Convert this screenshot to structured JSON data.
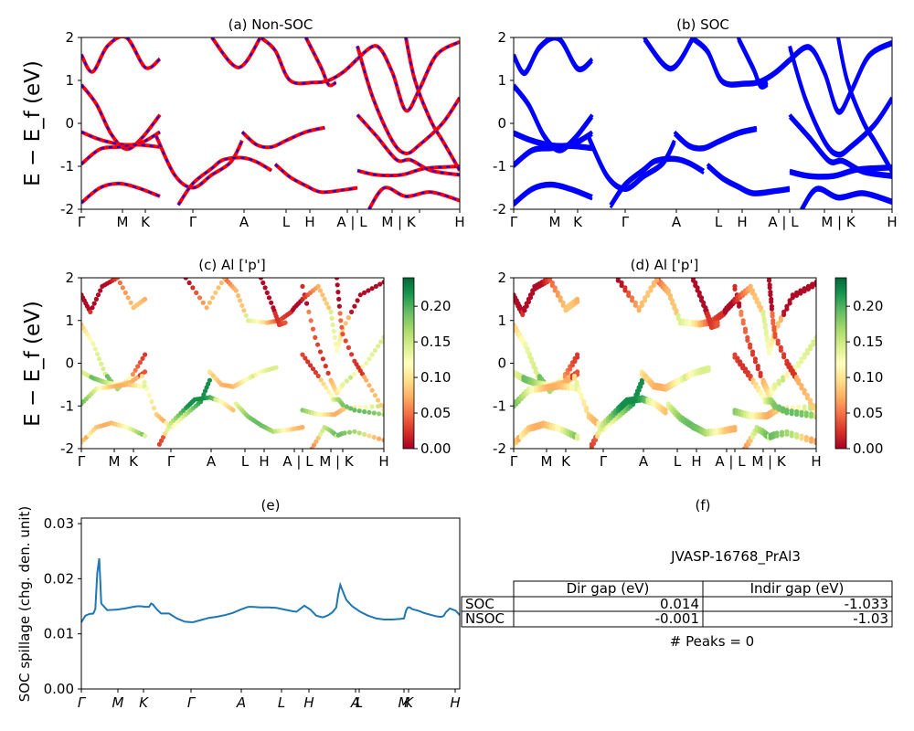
{
  "chart_data": [
    {
      "id": "a",
      "type": "line",
      "title": "(a) Non-SOC",
      "ylabel": "E − E_f (eV)",
      "ylim": [
        -2,
        2
      ],
      "yticks": [
        -2,
        -1,
        0,
        1,
        2
      ],
      "xticks": [
        "Γ",
        "M",
        "K",
        "Γ",
        "A",
        "L",
        "H",
        "A | L",
        "M | K",
        "H"
      ],
      "series": [
        {
          "color": "#ff0000",
          "style": "solid",
          "bands": [
            {
              "x": [
                0,
                4,
                8,
                12,
                16,
                21
              ],
              "y": [
                0.9,
                0.45,
                -0.25,
                -0.6,
                -0.35,
                0.2
              ]
            },
            {
              "x": [
                0,
                4,
                8,
                12,
                16,
                21
              ],
              "y": [
                -0.2,
                -0.35,
                -0.45,
                -0.5,
                -0.45,
                -0.2
              ]
            },
            {
              "x": [
                0,
                5,
                10,
                15,
                21
              ],
              "y": [
                -0.95,
                -0.6,
                -0.55,
                -0.5,
                -0.55
              ]
            },
            {
              "x": [
                0,
                5,
                10,
                15,
                21
              ],
              "y": [
                -1.85,
                -1.5,
                -1.4,
                -1.5,
                -1.7
              ]
            },
            {
              "x": [
                0,
                3,
                7,
                12,
                17,
                21
              ],
              "y": [
                1.6,
                1.2,
                1.8,
                2.0,
                1.3,
                1.5
              ]
            },
            {
              "x": [
                20,
                25,
                30,
                35,
                40,
                43
              ],
              "y": [
                -0.3,
                -1.2,
                -1.5,
                -1.2,
                -0.9,
                -0.4
              ]
            },
            {
              "x": [
                26,
                30,
                35,
                38,
                43,
                47,
                51
              ],
              "y": [
                -1.9,
                -1.4,
                -1.05,
                -0.85,
                -0.8,
                -0.9,
                -1.1
              ]
            },
            {
              "x": [
                43,
                47,
                51,
                55,
                60,
                65
              ],
              "y": [
                -0.2,
                -0.5,
                -0.55,
                -0.4,
                -0.2,
                -0.1
              ]
            },
            {
              "x": [
                52,
                56,
                60,
                64,
                70,
                73
              ],
              "y": [
                -0.95,
                -1.25,
                -1.45,
                -1.6,
                -1.55,
                -1.5
              ]
            },
            {
              "x": [
                48,
                52,
                56,
                62,
                66,
                70,
                73
              ],
              "y": [
                2.0,
                1.7,
                1.0,
                0.95,
                1.0,
                1.2,
                1.5
              ]
            },
            {
              "x": [
                60,
                64,
                66,
                68
              ],
              "y": [
                2.0,
                1.3,
                0.9,
                0.95
              ]
            },
            {
              "x": [
                35,
                42,
                48
              ],
              "y": [
                2.0,
                1.3,
                2.0
              ]
            },
            {
              "x": [
                73,
                78,
                84,
                89,
                95
              ],
              "y": [
                -1.1,
                -1.2,
                -1.2,
                -1.05,
                -1.0
              ]
            },
            {
              "x": [
                73,
                77,
                82,
                85,
                88,
                92,
                95
              ],
              "y": [
                1.8,
                0.6,
                -0.4,
                -0.7,
                -0.5,
                0.0,
                0.6
              ]
            },
            {
              "x": [
                73,
                78,
                83,
                86,
                90,
                95
              ],
              "y": [
                0.2,
                -0.3,
                -0.85,
                -0.85,
                -1.1,
                -1.2
              ]
            },
            {
              "x": [
                76,
                80,
                85,
                90,
                95
              ],
              "y": [
                -2.0,
                -1.5,
                -1.7,
                -1.6,
                -1.8
              ]
            },
            {
              "x": [
                73,
                78,
                82,
                85,
                88,
                91,
                95
              ],
              "y": [
                1.5,
                1.8,
                1.2,
                0.3,
                0.8,
                1.6,
                1.9
              ]
            },
            {
              "x": [
                85,
                87,
                90,
                92,
                95
              ],
              "y": [
                2.0,
                1.0,
                0.05,
                -0.4,
                -1.1
              ]
            }
          ]
        },
        {
          "color": "#0000ff",
          "style": "dashed",
          "bands": "same"
        }
      ]
    },
    {
      "id": "b",
      "type": "line",
      "title": "(b) SOC",
      "ylim": [
        -2,
        2
      ],
      "yticks": [
        -2,
        -1,
        0,
        1,
        2
      ],
      "xticks": [
        "Γ",
        "M",
        "K",
        "Γ",
        "A",
        "L",
        "H",
        "A | L",
        "M | K",
        "H"
      ],
      "series": [
        {
          "color": "#0000ff",
          "style": "solid",
          "bands": "same-as-a"
        }
      ]
    },
    {
      "id": "c",
      "type": "scatter",
      "title": "(c)  Al ['p']",
      "ylabel": "E − E_f (eV)",
      "ylim": [
        -2,
        2
      ],
      "yticks": [
        -2,
        -1,
        0,
        1,
        2
      ],
      "xticks": [
        "Γ",
        "M",
        "K",
        "Γ",
        "A",
        "L",
        "H",
        "A | L",
        "M | K",
        "H"
      ],
      "colorbar": {
        "range": [
          0.0,
          0.24
        ],
        "ticks": [
          "0.00",
          "0.05",
          "0.10",
          "0.15",
          "0.20"
        ],
        "colormap": "RdYlGn"
      },
      "points": "band-projection"
    },
    {
      "id": "d",
      "type": "scatter",
      "title": "(d) Al ['p']",
      "ylim": [
        -2,
        2
      ],
      "yticks": [
        -2,
        -1,
        0,
        1,
        2
      ],
      "xticks": [
        "Γ",
        "M",
        "K",
        "Γ",
        "A",
        "L",
        "H",
        "A | L",
        "M | K",
        "H"
      ],
      "colorbar": {
        "range": [
          0.0,
          0.24
        ],
        "ticks": [
          "0.00",
          "0.05",
          "0.10",
          "0.15",
          "0.20"
        ],
        "colormap": "RdYlGn"
      },
      "points": "band-projection"
    },
    {
      "id": "e",
      "type": "line",
      "title": "(e)",
      "ylabel": "SOC spillage (chg. den. unit)",
      "ylim": [
        0.0,
        0.031
      ],
      "yticks": [
        "0.00",
        "0.01",
        "0.02",
        "0.03"
      ],
      "xticks": [
        "Γ",
        "M",
        "K",
        "Γ",
        "A",
        "L",
        "H",
        "A",
        "L",
        "M",
        "K",
        "H"
      ],
      "series": [
        {
          "color": "#1f77b4",
          "x": [
            0,
            2,
            4,
            6,
            7,
            8,
            9,
            10,
            13,
            18,
            22,
            26,
            28,
            30,
            32,
            34,
            35,
            36,
            38,
            40,
            44,
            48,
            52,
            56,
            60,
            64,
            68,
            72,
            76,
            80,
            83,
            84,
            86,
            90,
            94,
            98,
            102,
            106,
            108,
            112,
            115,
            118,
            120,
            121,
            122,
            124,
            126,
            127,
            128,
            129,
            130,
            131,
            133,
            136,
            140,
            144,
            148,
            152,
            156,
            160,
            162,
            163,
            164,
            165,
            166,
            168,
            170,
            172,
            174,
            176,
            178,
            180,
            181,
            182,
            183,
            185,
            188,
            190
          ],
          "y": [
            0.0121,
            0.0133,
            0.0136,
            0.0137,
            0.0145,
            0.021,
            0.0237,
            0.0155,
            0.0143,
            0.0144,
            0.0146,
            0.0149,
            0.015,
            0.015,
            0.0149,
            0.0149,
            0.0155,
            0.0153,
            0.0144,
            0.0137,
            0.0137,
            0.0128,
            0.0122,
            0.0121,
            0.0125,
            0.0129,
            0.0131,
            0.0134,
            0.0138,
            0.0144,
            0.0148,
            0.0149,
            0.0149,
            0.0148,
            0.0148,
            0.0147,
            0.0144,
            0.0141,
            0.014,
            0.0151,
            0.0144,
            0.0133,
            0.0131,
            0.013,
            0.0131,
            0.0134,
            0.0139,
            0.0143,
            0.0148,
            0.0172,
            0.0189,
            0.018,
            0.0162,
            0.015,
            0.014,
            0.0133,
            0.0128,
            0.0126,
            0.0126,
            0.0127,
            0.0128,
            0.0142,
            0.0148,
            0.0148,
            0.0145,
            0.0143,
            0.0141,
            0.0138,
            0.0136,
            0.0134,
            0.0132,
            0.0131,
            0.0131,
            0.0133,
            0.0139,
            0.0146,
            0.0142,
            0.0134
          ]
        }
      ]
    },
    {
      "id": "f",
      "type": "table",
      "title": "(f)",
      "material": "JVASP-16768_PrAl3",
      "columns": [
        "Dir gap (eV)",
        "Indir gap (eV)"
      ],
      "rows": [
        {
          "label": "SOC",
          "dir": "0.014",
          "indir": "-1.033"
        },
        {
          "label": "NSOC",
          "dir": "-0.001",
          "indir": "-1.03"
        }
      ],
      "peaks_text": "# Peaks = 0"
    }
  ]
}
